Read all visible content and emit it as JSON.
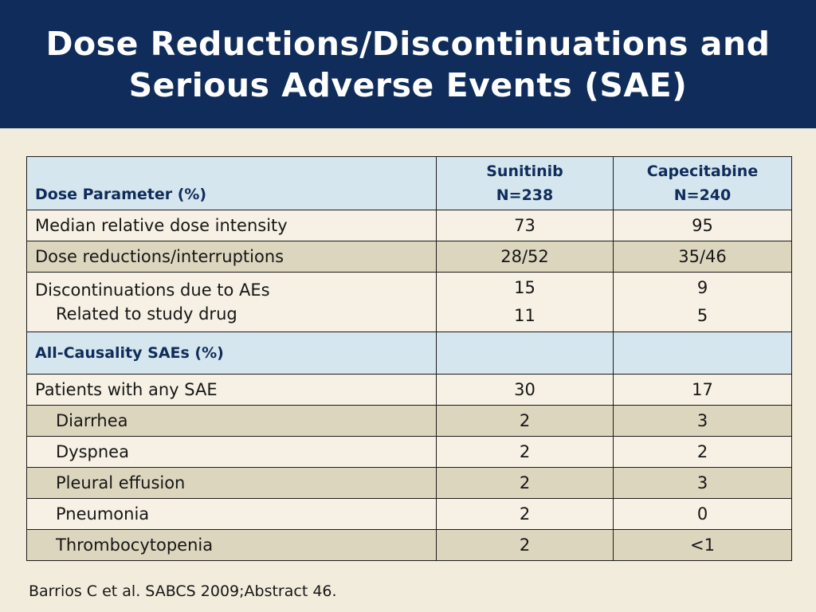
{
  "title": {
    "line1": "Dose Reductions/Discontinuations and",
    "line2": "Serious Adverse Events (SAE)"
  },
  "table": {
    "header": {
      "param_label": "Dose Parameter (%)",
      "col1_name": "Sunitinib",
      "col1_n": "N=238",
      "col2_name": "Capecitabine",
      "col2_n": "N=240"
    },
    "dose_rows": [
      {
        "label": "Median relative dose intensity",
        "sunitinib": "73",
        "capecitabine": "95"
      },
      {
        "label": "Dose reductions/interruptions",
        "sunitinib": "28/52",
        "capecitabine": "35/46"
      }
    ],
    "discontinuation": {
      "label": "Discontinuations due to AEs",
      "sub_label": "Related to study drug",
      "sunitinib": "15",
      "capecitabine": "9",
      "sub_sunitinib": "11",
      "sub_capecitabine": "5"
    },
    "sae_section_label": "All-Causality SAEs (%)",
    "sae_rows": [
      {
        "label": "Patients with any SAE",
        "sunitinib": "30",
        "capecitabine": "17"
      },
      {
        "label": "Diarrhea",
        "sunitinib": "2",
        "capecitabine": "3"
      },
      {
        "label": "Dyspnea",
        "sunitinib": "2",
        "capecitabine": "2"
      },
      {
        "label": "Pleural effusion",
        "sunitinib": "2",
        "capecitabine": "3"
      },
      {
        "label": "Pneumonia",
        "sunitinib": "2",
        "capecitabine": "0"
      },
      {
        "label": "Thrombocytopenia",
        "sunitinib": "2",
        "capecitabine": "<1"
      }
    ]
  },
  "footnote": "Barrios C et al. SABCS 2009;Abstract 46.",
  "colors": {
    "title_bar": "#0f2c5a",
    "background": "#f2ecdc",
    "header_fill": "#d6e6ee",
    "row_dark": "#ddd6bf",
    "row_light": "#f6f1e4"
  }
}
